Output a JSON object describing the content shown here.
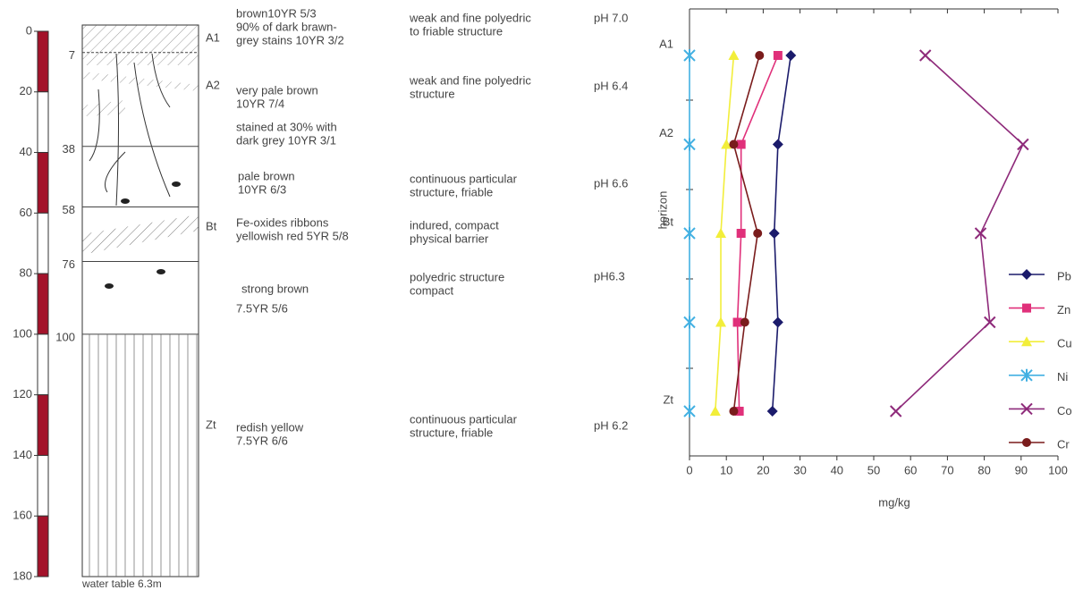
{
  "profile": {
    "depth_ticks": [
      0,
      20,
      40,
      60,
      80,
      100,
      120,
      140,
      160,
      180
    ],
    "boundaries": [
      7,
      38,
      58,
      76,
      100
    ],
    "horizons": [
      "A1",
      "A2",
      "Bt",
      "Zt"
    ],
    "descriptions": [
      [
        "brown10YR 5/3",
        "90% of dark brawn-",
        "grey stains 10YR 3/2"
      ],
      [
        "very pale brown",
        "10YR 7/4"
      ],
      [
        "stained at 30% with",
        "dark grey 10YR 3/1"
      ],
      [
        "pale brown",
        "10YR 6/3"
      ],
      [
        "Fe-oxides ribbons",
        "yellowish red 5YR 5/8"
      ],
      [
        "strong brown"
      ],
      [
        "7.5YR 5/6"
      ],
      [
        "redish yellow",
        "7.5YR 6/6"
      ]
    ],
    "structures": [
      [
        "weak and fine polyedric",
        "to friable structure"
      ],
      [
        "weak and fine polyedric",
        "structure"
      ],
      [
        "continuous particular",
        "structure, friable"
      ],
      [
        "indured, compact",
        "physical barrier"
      ],
      [
        "polyedric  structure",
        "compact"
      ],
      [
        "continuous particular",
        "structure, friable"
      ]
    ],
    "ph": [
      "pH 7.0",
      "pH 6.4",
      "pH 6.6",
      "pH6.3",
      "pH 6.2"
    ],
    "water_table": "water table  6.3m"
  },
  "chart_data": {
    "type": "line",
    "xlabel": "mg/kg",
    "ylabel": "horizon",
    "categories": [
      "A1",
      "A2",
      "Bt",
      null,
      "Zt"
    ],
    "xlim": [
      0,
      100
    ],
    "xticks": [
      0,
      10,
      20,
      30,
      40,
      50,
      60,
      70,
      80,
      90,
      100
    ],
    "series": [
      {
        "name": "Pb",
        "color": "#1b1b6b",
        "marker": "diamond",
        "values": [
          27.5,
          24,
          23,
          24,
          22.5
        ]
      },
      {
        "name": "Zn",
        "color": "#e0307a",
        "marker": "square",
        "values": [
          24,
          14,
          14,
          13,
          13.5
        ]
      },
      {
        "name": "Cu",
        "color": "#f2ee3a",
        "marker": "triangle",
        "values": [
          12,
          10,
          8.5,
          8.5,
          7
        ]
      },
      {
        "name": "Ni",
        "color": "#42b0e2",
        "marker": "star",
        "values": [
          0,
          0,
          0,
          0,
          0
        ]
      },
      {
        "name": "Co",
        "color": "#8e2a7a",
        "marker": "x",
        "values": [
          64,
          90.5,
          79,
          81.5,
          56
        ]
      },
      {
        "name": "Cr",
        "color": "#7a1c1c",
        "marker": "circle",
        "values": [
          19,
          12,
          18.5,
          15,
          12
        ]
      }
    ]
  }
}
